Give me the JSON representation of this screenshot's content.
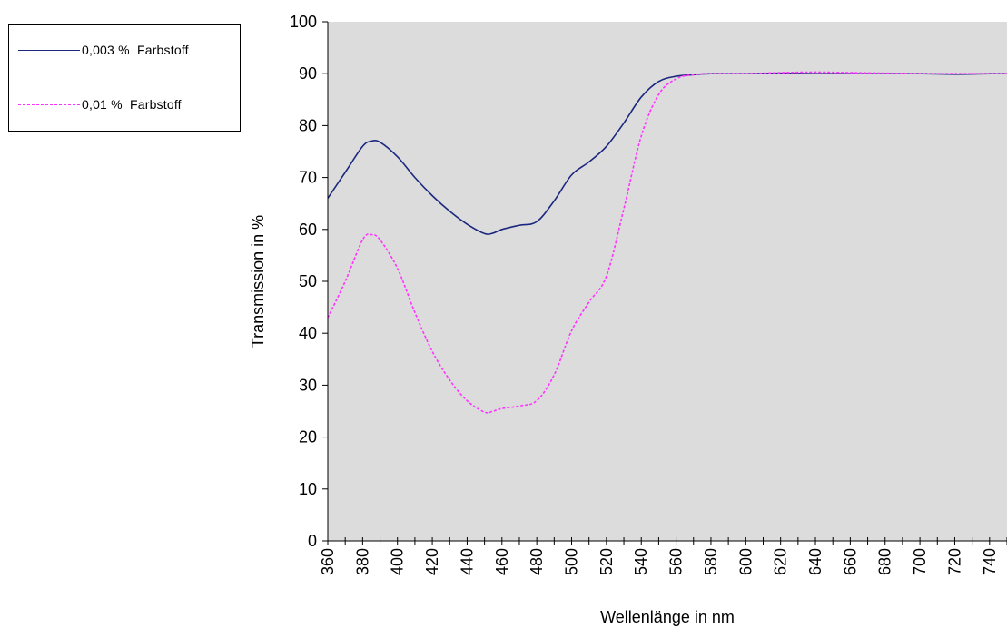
{
  "chart_data": {
    "type": "line",
    "title": "",
    "xlabel": "Wellenlänge in nm",
    "ylabel": "Transmission in %",
    "xlim": [
      360,
      750
    ],
    "ylim": [
      0,
      100
    ],
    "x_ticks": [
      360,
      380,
      400,
      420,
      440,
      460,
      480,
      500,
      520,
      540,
      560,
      580,
      600,
      620,
      640,
      660,
      680,
      700,
      720,
      740
    ],
    "y_ticks": [
      0,
      10,
      20,
      30,
      40,
      50,
      60,
      70,
      80,
      90,
      100
    ],
    "x_minor_step": 10,
    "grid": false,
    "plot_background": "#dcdcdc",
    "legend_position": "top-left, outside plot",
    "series": [
      {
        "name": "0,003 %  Farbstoff",
        "color": "#1c2880",
        "style": "solid",
        "x": [
          360,
          370,
          380,
          385,
          390,
          400,
          410,
          420,
          430,
          440,
          450,
          455,
          460,
          470,
          480,
          490,
          500,
          510,
          520,
          530,
          540,
          550,
          560,
          570,
          580,
          600,
          620,
          640,
          660,
          680,
          700,
          720,
          740,
          750
        ],
        "y": [
          66,
          71,
          76,
          77,
          76.8,
          74,
          70,
          66.5,
          63.5,
          61,
          59.2,
          59.3,
          60,
          60.8,
          61.5,
          65.5,
          70.5,
          73,
          76,
          80.5,
          85.5,
          88.5,
          89.5,
          89.8,
          90,
          90,
          90.1,
          90,
          90,
          90,
          90,
          89.9,
          90,
          90
        ]
      },
      {
        "name": "0,01 %  Farbstoff",
        "color": "#ff33ff",
        "style": "dashed",
        "x": [
          360,
          370,
          380,
          385,
          390,
          400,
          410,
          420,
          430,
          440,
          450,
          455,
          460,
          470,
          480,
          490,
          500,
          510,
          520,
          530,
          540,
          550,
          560,
          570,
          580,
          600,
          620,
          640,
          660,
          680,
          700,
          720,
          740,
          750
        ],
        "y": [
          43,
          50,
          58,
          59,
          58,
          52.5,
          44,
          36.5,
          31,
          27,
          24.8,
          25,
          25.5,
          26,
          27,
          32,
          40.5,
          46,
          51,
          64,
          78,
          86,
          89,
          89.8,
          90,
          90,
          90.2,
          90.3,
          90.2,
          90.1,
          90,
          90,
          90,
          90
        ]
      }
    ]
  }
}
